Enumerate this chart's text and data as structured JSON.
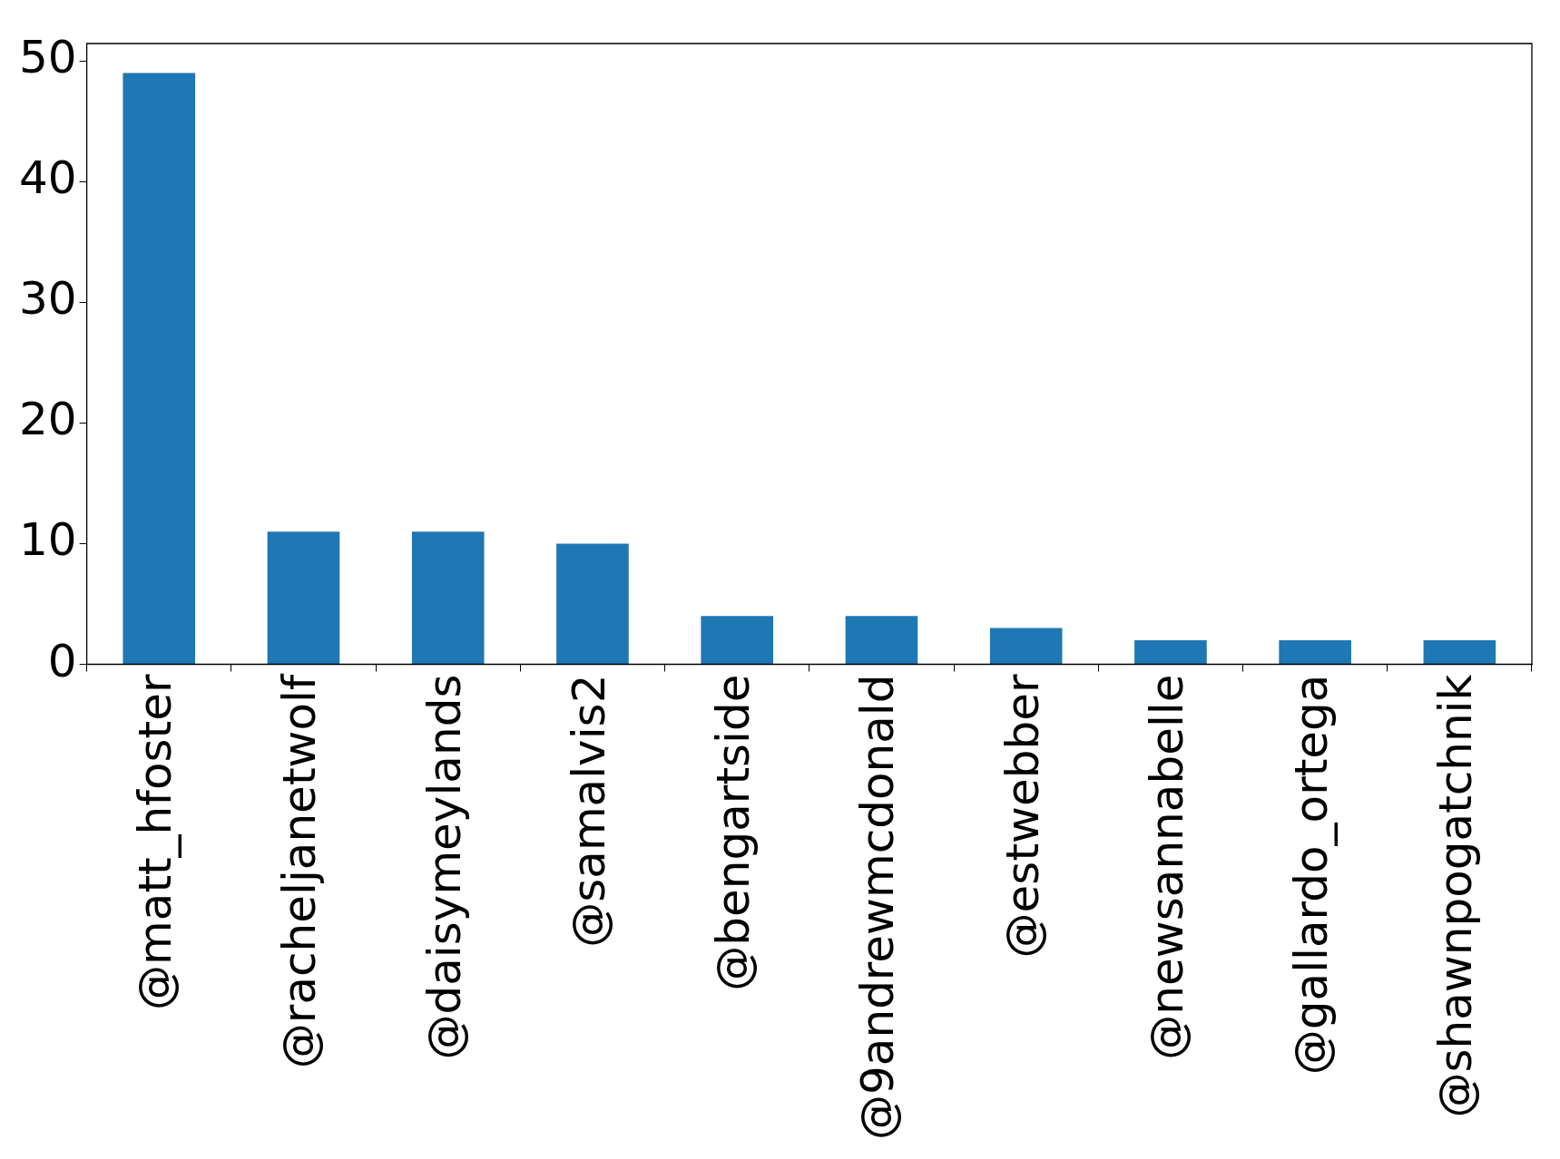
{
  "chart_data": {
    "type": "bar",
    "categories": [
      "@matt_hfoster",
      "@racheljanetwolf",
      "@daisymeylands",
      "@samalvis2",
      "@bengartside",
      "@9andrewmcdonald",
      "@estwebber",
      "@newsannabelle",
      "@gallardo_ortega",
      "@shawnpogatchnik"
    ],
    "values": [
      49,
      11,
      11,
      10,
      4,
      4,
      3,
      2,
      2,
      2
    ],
    "color": "#1f77b4",
    "ylim": [
      0,
      51.45
    ],
    "yticks": [
      0,
      10,
      20,
      30,
      40,
      50
    ],
    "grid": false,
    "legend": false
  }
}
